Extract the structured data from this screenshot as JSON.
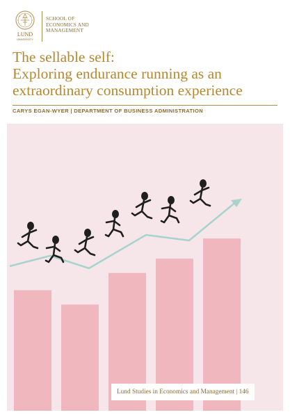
{
  "publisher": {
    "school_line1": "SCHOOL OF",
    "school_line2": "ECONOMICS AND",
    "school_line3": "MANAGEMENT",
    "logo_text": "LUND",
    "logo_subtext": "UNIVERSITY"
  },
  "book": {
    "title_line1": "The sellable self:",
    "title_line2": "Exploring endurance running as an",
    "title_line3": "extraordinary consumption experience",
    "author_line": "CARYS EGAN-WYER | DEPARTMENT OF BUSINESS ADMINISTRATION",
    "series": "Lund Studies in Economics and Management | 146"
  },
  "colors": {
    "accent": "#b7872f",
    "bars": "#f0b7bf",
    "background_panel": "#f6e6ea",
    "trend_arrow": "#a8d3cc",
    "runners": "#1f1f1f"
  },
  "illustration": {
    "bar_levels": [
      0.42,
      0.37,
      0.48,
      0.53,
      0.6
    ],
    "trend_points": [
      0.05,
      0.22,
      0.16,
      0.24,
      0.3,
      0.36,
      0.42,
      0.5,
      0.57,
      0.65,
      0.73,
      0.9
    ]
  }
}
